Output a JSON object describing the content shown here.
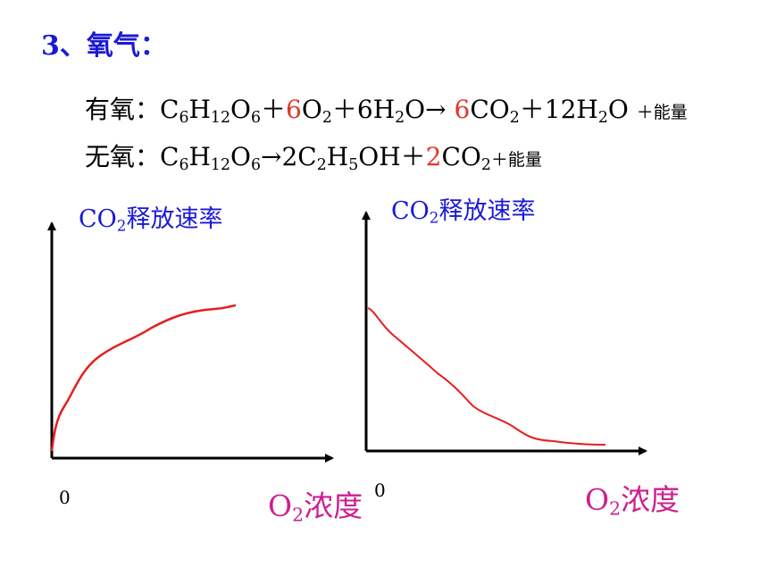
{
  "heading": "3、氧气：",
  "equations": {
    "aerobic": {
      "label": "有氧：",
      "parts": [
        {
          "t": "C"
        },
        {
          "t": "6",
          "sub": true
        },
        {
          "t": "H"
        },
        {
          "t": "12",
          "sub": true
        },
        {
          "t": "O"
        },
        {
          "t": "6",
          "sub": true
        },
        {
          "t": "＋"
        },
        {
          "t": "6",
          "red": true
        },
        {
          "t": "O"
        },
        {
          "t": "2",
          "sub": true
        },
        {
          "t": "＋6H"
        },
        {
          "t": "2",
          "sub": true
        },
        {
          "t": "O"
        },
        {
          "t": "→ "
        },
        {
          "t": "6",
          "red": true
        },
        {
          "t": "CO"
        },
        {
          "t": "2",
          "sub": true
        },
        {
          "t": "＋12H"
        },
        {
          "t": "2",
          "sub": true
        },
        {
          "t": "O "
        },
        {
          "t": "＋能量",
          "small": true
        }
      ]
    },
    "anaerobic": {
      "label": "无氧：",
      "parts": [
        {
          "t": "C"
        },
        {
          "t": "6",
          "sub": true
        },
        {
          "t": "H"
        },
        {
          "t": "12",
          "sub": true
        },
        {
          "t": "O"
        },
        {
          "t": "6",
          "sub": true
        },
        {
          "t": "→2C"
        },
        {
          "t": "2",
          "sub": true
        },
        {
          "t": "H"
        },
        {
          "t": "5",
          "sub": true
        },
        {
          "t": "OH＋"
        },
        {
          "t": "2",
          "red": true
        },
        {
          "t": "CO"
        },
        {
          "t": "2",
          "sub": true
        },
        {
          "t": "＋能量",
          "small": true
        }
      ]
    }
  },
  "graphs": {
    "left": {
      "ylabel": {
        "pre": "CO",
        "sub": "2",
        "post": "释放速率"
      },
      "origin": "0",
      "xlabel": {
        "pre": "O",
        "sub": "2",
        "post": "浓度"
      }
    },
    "right": {
      "ylabel": {
        "pre": "CO",
        "sub": "2",
        "post": "释放速率"
      },
      "origin": "0",
      "xlabel": {
        "pre": "O",
        "sub": "2",
        "post": "浓度"
      }
    }
  },
  "colors": {
    "title": "#1a1ad6",
    "ylabel": "#1a1ad6",
    "xlabel": "#cc1f8f",
    "highlight": "#e2352a",
    "curve": "#e61e1e",
    "axis": "#000000"
  }
}
